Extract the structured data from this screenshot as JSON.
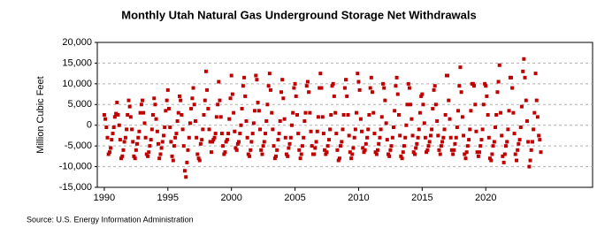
{
  "chart_data": {
    "type": "scatter",
    "title": "Monthly Utah Natural Gas Underground Storage Net Withdrawals",
    "y_label": "Million Cubic Feet",
    "source": "Source: U.S. Energy Information Administration",
    "color": "#c00000",
    "grid": true,
    "xlim": [
      1989.45,
      2028.4
    ],
    "ylim": [
      -15000,
      20000
    ],
    "xticks": [
      1990,
      1995,
      2000,
      2005,
      2010,
      2015,
      2020
    ],
    "yticks": [
      {
        "value": -15000,
        "label": "-15,000"
      },
      {
        "value": -10000,
        "label": "-10,000"
      },
      {
        "value": -5000,
        "label": "-5,000"
      },
      0,
      {
        "value": 5000,
        "label": "5,000"
      },
      {
        "value": 10000,
        "label": "10,000"
      },
      {
        "value": 15000,
        "label": "15,000"
      },
      {
        "value": 20000,
        "label": "20,000"
      }
    ],
    "x": [
      1990,
      1990.08,
      1990.17,
      1990.25,
      1990.33,
      1990.42,
      1990.5,
      1990.58,
      1990.67,
      1990.75,
      1990.83,
      1990.92,
      1991,
      1991.08,
      1991.17,
      1991.25,
      1991.33,
      1991.42,
      1991.5,
      1991.58,
      1991.67,
      1991.75,
      1991.83,
      1991.92,
      1992,
      1992.08,
      1992.17,
      1992.25,
      1992.33,
      1992.42,
      1992.5,
      1992.58,
      1992.67,
      1992.75,
      1992.83,
      1992.92,
      1993,
      1993.08,
      1993.17,
      1993.25,
      1993.33,
      1993.42,
      1993.5,
      1993.58,
      1993.67,
      1993.75,
      1993.83,
      1993.92,
      1994,
      1994.08,
      1994.17,
      1994.25,
      1994.33,
      1994.42,
      1994.5,
      1994.58,
      1994.67,
      1994.75,
      1994.83,
      1994.92,
      1995,
      1995.08,
      1995.17,
      1995.25,
      1995.33,
      1995.42,
      1995.5,
      1995.58,
      1995.67,
      1995.75,
      1995.83,
      1995.92,
      1996,
      1996.08,
      1996.17,
      1996.25,
      1996.33,
      1996.42,
      1996.5,
      1996.58,
      1996.67,
      1996.75,
      1996.83,
      1996.92,
      1997,
      1997.08,
      1997.17,
      1997.25,
      1997.33,
      1997.42,
      1997.5,
      1997.58,
      1997.67,
      1997.75,
      1997.83,
      1997.92,
      1998,
      1998.08,
      1998.17,
      1998.25,
      1998.33,
      1998.42,
      1998.5,
      1998.58,
      1998.67,
      1998.75,
      1998.83,
      1998.92,
      1999,
      1999.08,
      1999.17,
      1999.25,
      1999.33,
      1999.42,
      1999.5,
      1999.58,
      1999.67,
      1999.75,
      1999.83,
      1999.92,
      2000,
      2000.08,
      2000.17,
      2000.25,
      2000.33,
      2000.42,
      2000.5,
      2000.58,
      2000.67,
      2000.75,
      2000.83,
      2000.92,
      2001,
      2001.08,
      2001.17,
      2001.25,
      2001.33,
      2001.42,
      2001.5,
      2001.58,
      2001.67,
      2001.75,
      2001.83,
      2001.92,
      2002,
      2002.08,
      2002.17,
      2002.25,
      2002.33,
      2002.42,
      2002.5,
      2002.58,
      2002.67,
      2002.75,
      2002.83,
      2002.92,
      2003,
      2003.08,
      2003.17,
      2003.25,
      2003.33,
      2003.42,
      2003.5,
      2003.58,
      2003.67,
      2003.75,
      2003.83,
      2003.92,
      2004,
      2004.08,
      2004.17,
      2004.25,
      2004.33,
      2004.42,
      2004.5,
      2004.58,
      2004.67,
      2004.75,
      2004.83,
      2004.92,
      2005,
      2005.08,
      2005.17,
      2005.25,
      2005.33,
      2005.42,
      2005.5,
      2005.58,
      2005.67,
      2005.75,
      2005.83,
      2005.92,
      2006,
      2006.08,
      2006.17,
      2006.25,
      2006.33,
      2006.42,
      2006.5,
      2006.58,
      2006.67,
      2006.75,
      2006.83,
      2006.92,
      2007,
      2007.08,
      2007.17,
      2007.25,
      2007.33,
      2007.42,
      2007.5,
      2007.58,
      2007.67,
      2007.75,
      2007.83,
      2007.92,
      2008,
      2008.08,
      2008.17,
      2008.25,
      2008.33,
      2008.42,
      2008.5,
      2008.58,
      2008.67,
      2008.75,
      2008.83,
      2008.92,
      2009,
      2009.08,
      2009.17,
      2009.25,
      2009.33,
      2009.42,
      2009.5,
      2009.58,
      2009.67,
      2009.75,
      2009.83,
      2009.92,
      2010,
      2010.08,
      2010.17,
      2010.25,
      2010.33,
      2010.42,
      2010.5,
      2010.58,
      2010.67,
      2010.75,
      2010.83,
      2010.92,
      2011,
      2011.08,
      2011.17,
      2011.25,
      2011.33,
      2011.42,
      2011.5,
      2011.58,
      2011.67,
      2011.75,
      2011.83,
      2011.92,
      2012,
      2012.08,
      2012.17,
      2012.25,
      2012.33,
      2012.42,
      2012.5,
      2012.58,
      2012.67,
      2012.75,
      2012.83,
      2012.92,
      2013,
      2013.08,
      2013.17,
      2013.25,
      2013.33,
      2013.42,
      2013.5,
      2013.58,
      2013.67,
      2013.75,
      2013.83,
      2013.92,
      2014,
      2014.08,
      2014.17,
      2014.25,
      2014.33,
      2014.42,
      2014.5,
      2014.58,
      2014.67,
      2014.75,
      2014.83,
      2014.92,
      2015,
      2015.08,
      2015.17,
      2015.25,
      2015.33,
      2015.42,
      2015.5,
      2015.58,
      2015.67,
      2015.75,
      2015.83,
      2015.92,
      2016,
      2016.08,
      2016.17,
      2016.25,
      2016.33,
      2016.42,
      2016.5,
      2016.58,
      2016.67,
      2016.75,
      2016.83,
      2016.92,
      2017,
      2017.08,
      2017.17,
      2017.25,
      2017.33,
      2017.42,
      2017.5,
      2017.58,
      2017.67,
      2017.75,
      2017.83,
      2017.92,
      2018,
      2018.08,
      2018.17,
      2018.25,
      2018.33,
      2018.42,
      2018.5,
      2018.58,
      2018.67,
      2018.75,
      2018.83,
      2018.92,
      2019,
      2019.08,
      2019.17,
      2019.25,
      2019.33,
      2019.42,
      2019.5,
      2019.58,
      2019.67,
      2019.75,
      2019.83,
      2019.92,
      2020,
      2020.08,
      2020.17,
      2020.25,
      2020.33,
      2020.42,
      2020.5,
      2020.58,
      2020.67,
      2020.75,
      2020.83,
      2020.92,
      2021,
      2021.08,
      2021.17,
      2021.25,
      2021.33,
      2021.42,
      2021.5,
      2021.58,
      2021.67,
      2021.75,
      2021.83,
      2021.92,
      2022,
      2022.08,
      2022.17,
      2022.25,
      2022.33,
      2022.42,
      2022.5,
      2022.58,
      2022.67,
      2022.75,
      2022.83,
      2022.92,
      2023,
      2023.08,
      2023.17,
      2023.25,
      2023.33,
      2023.42,
      2023.5,
      2023.58,
      2023.67,
      2023.75,
      2023.83,
      2023.92,
      2024,
      2024.08,
      2024.17,
      2024.25,
      2024.33
    ],
    "values": [
      2500,
      1500,
      -500,
      -3000,
      -7000,
      -6500,
      -5500,
      -3500,
      -2000,
      -500,
      2000,
      2800,
      5500,
      2500,
      0,
      -3500,
      -8000,
      -7500,
      -6000,
      -4000,
      -3000,
      -1000,
      2500,
      6000,
      4500,
      2000,
      -1000,
      -4000,
      -7500,
      -8000,
      -6000,
      -4500,
      -3000,
      -1500,
      3000,
      5000,
      6000,
      3000,
      500,
      -3000,
      -7000,
      -7500,
      -6500,
      -5000,
      -3500,
      -1000,
      2500,
      6500,
      5000,
      1500,
      -1500,
      -4500,
      -8000,
      -7000,
      -5500,
      -4000,
      -2500,
      -500,
      3500,
      6000,
      8500,
      4000,
      -500,
      -4000,
      -7500,
      -8500,
      -5000,
      -3000,
      -2000,
      1000,
      3000,
      7000,
      6000,
      2500,
      -1000,
      -5000,
      -11000,
      -12500,
      -9000,
      -6000,
      -3000,
      500,
      4000,
      6500,
      9000,
      5000,
      1000,
      -3000,
      -7000,
      -8000,
      -8500,
      -4500,
      -3500,
      -1000,
      2500,
      6000,
      13000,
      8500,
      4000,
      -1000,
      -4000,
      -6500,
      -4000,
      -3500,
      -3000,
      -2000,
      2000,
      5000,
      10500,
      6000,
      2000,
      -2000,
      -5000,
      -7000,
      -6500,
      -4000,
      -3500,
      -2000,
      1500,
      6500,
      12000,
      7500,
      3000,
      -1500,
      -5500,
      -6000,
      -4500,
      -4000,
      -2000,
      0,
      4000,
      9500,
      11500,
      7000,
      1000,
      -3000,
      -7000,
      -7500,
      -6000,
      -4000,
      -2000,
      500,
      3500,
      12000,
      11000,
      5500,
      3500,
      -1000,
      -6000,
      -7000,
      -5000,
      -4000,
      -2000,
      1000,
      5000,
      9500,
      12500,
      8500,
      3000,
      -1000,
      -5000,
      -8000,
      -7500,
      -6000,
      -3500,
      -2000,
      1000,
      8000,
      11000,
      6500,
      1500,
      -3000,
      -7000,
      -7500,
      -5500,
      -4500,
      -3000,
      0,
      3000,
      9000,
      10000,
      7000,
      2500,
      -2000,
      -6000,
      -8000,
      -7000,
      -5000,
      -3000,
      1000,
      3000,
      9500,
      10500,
      8000,
      3000,
      -1500,
      -5000,
      -7000,
      -7000,
      -5500,
      -4000,
      -1500,
      2000,
      9000,
      12500,
      9000,
      2000,
      -2000,
      -6000,
      -7000,
      -6500,
      -5000,
      -3500,
      -1000,
      2500,
      9500,
      10000,
      7000,
      3000,
      -2000,
      -6000,
      -8500,
      -8000,
      -5000,
      -4000,
      -1000,
      2500,
      9000,
      11000,
      7000,
      2500,
      -2500,
      -6500,
      -8000,
      -7000,
      -5500,
      -3000,
      -1000,
      3000,
      12500,
      10500,
      8500,
      1500,
      -1500,
      -5500,
      -6500,
      -6000,
      -4500,
      -3000,
      -1000,
      2500,
      9000,
      11500,
      8000,
      3000,
      -2000,
      -6500,
      -7000,
      -6000,
      -4500,
      -3000,
      -1000,
      2000,
      10000,
      9000,
      6000,
      500,
      -3500,
      -7000,
      -7500,
      -6000,
      -5000,
      -3000,
      -500,
      3500,
      9500,
      11500,
      7500,
      2500,
      -2500,
      -7500,
      -8000,
      -6500,
      -5000,
      -3000,
      0,
      5000,
      10000,
      9000,
      5000,
      1500,
      -2500,
      -6500,
      -7000,
      -5500,
      -4500,
      -3000,
      -1000,
      3000,
      7000,
      7500,
      5000,
      500,
      -3000,
      -6500,
      -6000,
      -5000,
      -4000,
      -2500,
      -1000,
      4000,
      8500,
      9500,
      5000,
      1000,
      -2500,
      -6000,
      -7000,
      -5000,
      -4000,
      -3000,
      -1000,
      2500,
      12000,
      12000,
      6000,
      1500,
      -3000,
      -6000,
      -7000,
      -6000,
      -4500,
      -3000,
      -500,
      3500,
      9500,
      14000,
      8000,
      2000,
      -2500,
      -7000,
      -8000,
      -6500,
      -5000,
      -3500,
      -1000,
      3500,
      10000,
      10000,
      9500,
      5000,
      -1500,
      -6500,
      -7500,
      -6500,
      -5000,
      -3500,
      -1000,
      5000,
      10000,
      9500,
      7000,
      2500,
      -3000,
      -8000,
      -8500,
      -7000,
      -5000,
      -4000,
      -500,
      2500,
      8000,
      10500,
      14500,
      3000,
      -2500,
      -7500,
      -9000,
      -7000,
      -5000,
      -4000,
      -1000,
      3500,
      11500,
      11500,
      9000,
      3000,
      -2000,
      -7000,
      -8500,
      -6000,
      -4500,
      -3500,
      -500,
      4500,
      13000,
      16000,
      11500,
      6000,
      1000,
      -4000,
      -10000,
      -8500,
      -6000,
      -4000,
      -1000,
      3000,
      12500,
      6000,
      2000,
      -2500,
      -3500,
      -6500
    ]
  }
}
